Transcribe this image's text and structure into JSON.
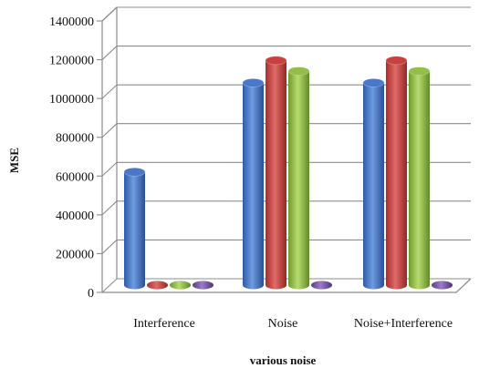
{
  "chart_data": {
    "type": "bar",
    "title": "",
    "xlabel": "various noise",
    "ylabel": "MSE",
    "categories": [
      "Interference",
      "Noise",
      "Noise+Interference"
    ],
    "series": [
      {
        "values": [
          640000,
          1100000,
          1100000
        ],
        "color": "#4a78c8"
      },
      {
        "values": [
          10000,
          1215000,
          1215000
        ],
        "color": "#c9413f"
      },
      {
        "values": [
          10000,
          1160000,
          1160000
        ],
        "color": "#93bf48"
      },
      {
        "values": [
          10000,
          10000,
          10000
        ],
        "color": "#7b56a8"
      }
    ],
    "ylim": [
      0,
      1400000
    ],
    "yticks": [
      "0",
      "200000",
      "400000",
      "600000",
      "800000",
      "1000000",
      "1200000",
      "1400000"
    ],
    "grid": true,
    "legend": "none"
  }
}
